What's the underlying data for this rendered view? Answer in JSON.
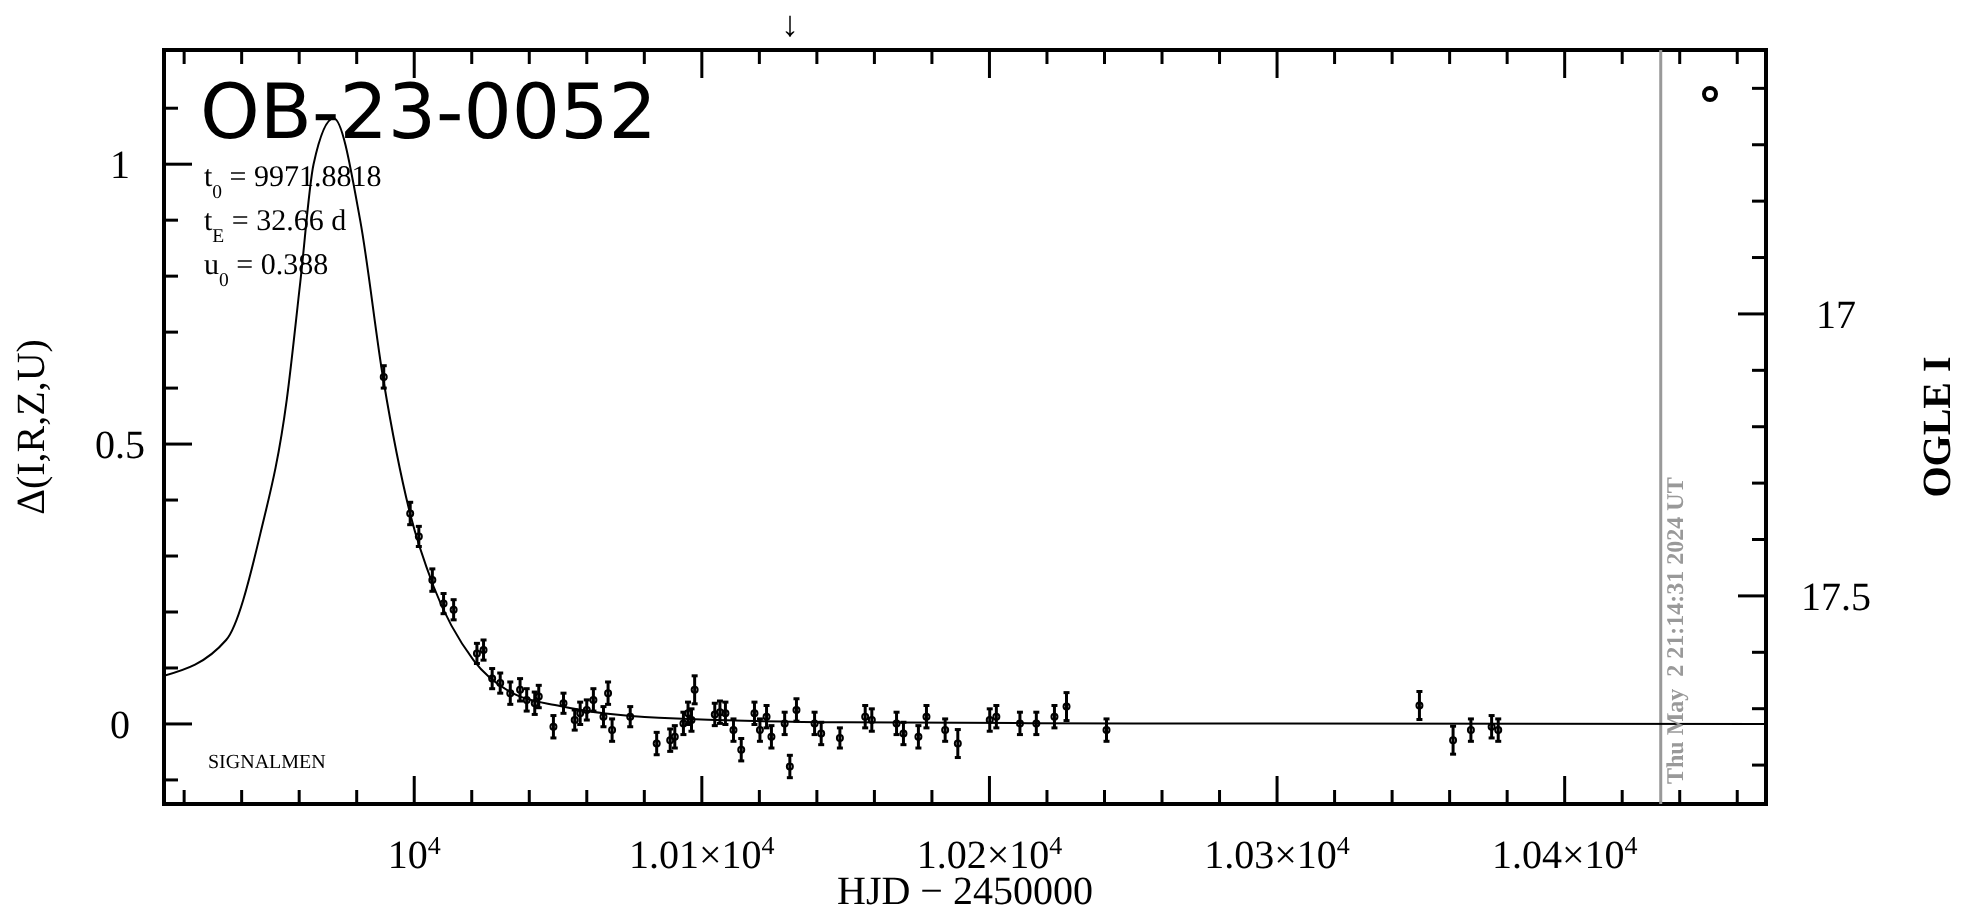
{
  "chart_data": {
    "type": "scatter",
    "title": "OB-23-0052",
    "xlabel": "HJD − 2450000",
    "ylabel": "Δ(I,R,Z,U)",
    "y2label": "OGLE I",
    "annotations": [
      "t$_{0}$ = 9971.8818",
      "t$_{E}$ = 32.66 d",
      "u$_{0}$ = 0.388",
      "SIGNALMEN",
      "↓",
      "Thu May  2 21:14:31 2024 UT"
    ],
    "xlim": [
      9913,
      10470
    ],
    "ylim": [
      -0.143,
      1.204
    ],
    "y2lim": [
      17.869,
      16.532
    ],
    "xticks": [
      {
        "value": 9920,
        "label": null
      },
      {
        "value": 9940,
        "label": null
      },
      {
        "value": 9960,
        "label": null
      },
      {
        "value": 9980,
        "label": null
      },
      {
        "value": 10000,
        "label": "10$^{4}$"
      },
      {
        "value": 10020,
        "label": null
      },
      {
        "value": 10040,
        "label": null
      },
      {
        "value": 10060,
        "label": null
      },
      {
        "value": 10080,
        "label": null
      },
      {
        "value": 10100,
        "label": "1.01×10$^{4}$"
      },
      {
        "value": 10120,
        "label": null
      },
      {
        "value": 10140,
        "label": null
      },
      {
        "value": 10160,
        "label": null
      },
      {
        "value": 10180,
        "label": null
      },
      {
        "value": 10200,
        "label": "1.02×10$^{4}$"
      },
      {
        "value": 10220,
        "label": null
      },
      {
        "value": 10240,
        "label": null
      },
      {
        "value": 10260,
        "label": null
      },
      {
        "value": 10280,
        "label": null
      },
      {
        "value": 10300,
        "label": "1.03×10$^{4}$"
      },
      {
        "value": 10320,
        "label": null
      },
      {
        "value": 10340,
        "label": null
      },
      {
        "value": 10360,
        "label": null
      },
      {
        "value": 10380,
        "label": null
      },
      {
        "value": 10400,
        "label": "1.04×10$^{4}$"
      },
      {
        "value": 10420,
        "label": null
      },
      {
        "value": 10440,
        "label": null
      },
      {
        "value": 10460,
        "label": null
      }
    ],
    "yticks": [
      {
        "value": -0.1,
        "label": null
      },
      0,
      {
        "value": 0.1,
        "label": null
      },
      {
        "value": 0.2,
        "label": null
      },
      {
        "value": 0.3,
        "label": null
      },
      {
        "value": 0.4,
        "label": null
      },
      0.5,
      {
        "value": 0.6,
        "label": null
      },
      {
        "value": 0.7,
        "label": null
      },
      {
        "value": 0.8,
        "label": null
      },
      {
        "value": 0.9,
        "label": null
      },
      1,
      {
        "value": 1.1,
        "label": null
      }
    ],
    "y2ticks": [
      {
        "value": 16.6,
        "label": null
      },
      {
        "value": 16.7,
        "label": null
      },
      {
        "value": 16.8,
        "label": null
      },
      {
        "value": 16.9,
        "label": null
      },
      17,
      {
        "value": 17.1,
        "label": null
      },
      {
        "value": 17.2,
        "label": null
      },
      {
        "value": 17.3,
        "label": null
      },
      {
        "value": 17.4,
        "label": null
      },
      17.5,
      {
        "value": 17.6,
        "label": null
      },
      {
        "value": 17.7,
        "label": null
      },
      {
        "value": 17.8,
        "label": null
      }
    ],
    "ref_lines": [
      {
        "axis": "x",
        "value": 10433.4,
        "color": "#999999"
      }
    ],
    "grid": false,
    "line_style": "solid",
    "series": [
      {
        "type": "line",
        "color": "#000000",
        "x": [
          9913,
          9934.6,
          9946.5,
          9955.7,
          9960.4,
          9965,
          9972,
          9981.2,
          9989.3,
          9998.6,
          10006.7,
          10020.6,
          10034.5,
          10050.7,
          10085,
          10150,
          10250,
          10470
        ],
        "values": [
          0.086,
          0.15,
          0.34,
          0.58,
          0.79,
          1.0,
          1.082,
          0.9,
          0.614,
          0.375,
          0.246,
          0.114,
          0.054,
          0.032,
          0.011,
          0.003,
          0.001,
          0
        ]
      },
      {
        "color": "#000000",
        "marker": "circle",
        "x": [
          9989.4,
          9998.6,
          10001.6,
          10006.3,
          10010.2,
          10013.7,
          10021.8,
          10024.1,
          10027.1,
          10029.9,
          10033.4,
          10036.8,
          10039.1,
          10041.9,
          10043.3,
          10048.4,
          10051.9,
          10055.8,
          10057.7,
          10060,
          10062.3,
          10065.8,
          10067.4,
          10068.8,
          10075.1,
          10084.3,
          10089,
          10090.6,
          10093.6,
          10095.2,
          10097.5,
          10096.4,
          10104.5,
          10106.3,
          10108.2,
          10111,
          10113.7,
          10118.3,
          10120.2,
          10122.5,
          10124.2,
          10128.8,
          10130.6,
          10132.9,
          10139.2,
          10141.5,
          10148,
          10156.8,
          10159.1,
          10167.7,
          10170.1,
          10175.3,
          10178.1,
          10184.6,
          10189,
          10200.1,
          10202.4,
          10210.6,
          10216.3,
          10222.6,
          10226.8,
          10240.7,
          10349.5,
          10361.2,
          10367.4,
          10374.6,
          10376.9
        ],
        "values": [
          0.62,
          0.376,
          0.335,
          0.257,
          0.215,
          0.204,
          0.126,
          0.132,
          0.081,
          0.073,
          0.055,
          0.061,
          0.043,
          0.037,
          0.049,
          -0.005,
          0.037,
          0.007,
          0.019,
          0.025,
          0.043,
          0.013,
          0.055,
          -0.011,
          0.013,
          -0.035,
          -0.029,
          -0.023,
          0.001,
          0.019,
          0.061,
          0.007,
          0.017,
          0.021,
          0.019,
          -0.011,
          -0.046,
          0.019,
          -0.011,
          0.013,
          -0.023,
          0.001,
          -0.076,
          0.025,
          0.001,
          -0.017,
          -0.025,
          0.013,
          0.007,
          0.001,
          -0.017,
          -0.023,
          0.013,
          -0.011,
          -0.035,
          0.007,
          0.013,
          0.001,
          0.001,
          0.013,
          0.031,
          -0.011,
          0.033,
          -0.029,
          -0.011,
          -0.005,
          -0.011
        ],
        "errors": [
          0.02,
          0.02,
          0.018,
          0.02,
          0.018,
          0.018,
          0.018,
          0.018,
          0.018,
          0.018,
          0.02,
          0.02,
          0.02,
          0.02,
          0.02,
          0.02,
          0.018,
          0.018,
          0.02,
          0.018,
          0.02,
          0.018,
          0.02,
          0.02,
          0.018,
          0.02,
          0.02,
          0.02,
          0.02,
          0.02,
          0.025,
          0.02,
          0.02,
          0.02,
          0.02,
          0.02,
          0.02,
          0.02,
          0.02,
          0.02,
          0.02,
          0.02,
          0.02,
          0.02,
          0.02,
          0.02,
          0.018,
          0.02,
          0.02,
          0.02,
          0.02,
          0.02,
          0.02,
          0.02,
          0.025,
          0.02,
          0.02,
          0.02,
          0.02,
          0.02,
          0.025,
          0.02,
          0.025,
          0.025,
          0.02,
          0.02,
          0.02
        ]
      }
    ]
  }
}
